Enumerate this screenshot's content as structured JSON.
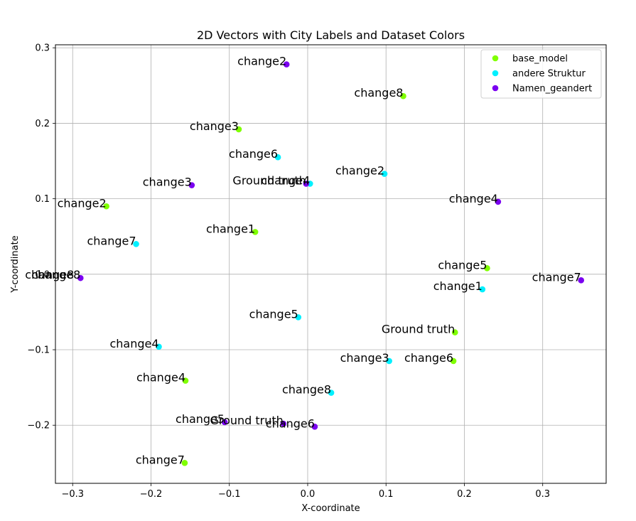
{
  "chart_data": {
    "type": "scatter",
    "title": "2D Vectors with City Labels and Dataset Colors",
    "xlabel": "X-coordinate",
    "ylabel": "Y-coordinate",
    "xlim": [
      -0.322,
      0.381
    ],
    "ylim": [
      -0.277,
      0.304
    ],
    "xticks": [
      -0.3,
      -0.2,
      -0.1,
      0.0,
      0.1,
      0.2,
      0.3
    ],
    "xtick_labels": [
      "−0.3",
      "−0.2",
      "−0.1",
      "0.0",
      "0.1",
      "0.2",
      "0.3"
    ],
    "yticks": [
      -0.2,
      -0.1,
      0.0,
      0.1,
      0.2,
      0.3
    ],
    "ytick_labels": [
      "−0.2",
      "−0.1",
      "0.0",
      "0.1",
      "0.2",
      "0.3"
    ],
    "grid": true,
    "legend_position": "top-right",
    "series": [
      {
        "name": "base_model",
        "color": "#80ff00",
        "points": [
          {
            "x": -0.088,
            "y": 0.192,
            "label": "change3"
          },
          {
            "x": 0.122,
            "y": 0.236,
            "label": "change8"
          },
          {
            "x": -0.257,
            "y": 0.09,
            "label": "change2"
          },
          {
            "x": -0.067,
            "y": 0.056,
            "label": "change1"
          },
          {
            "x": 0.229,
            "y": 0.008,
            "label": "change5"
          },
          {
            "x": 0.188,
            "y": -0.077,
            "label": "Ground truth"
          },
          {
            "x": 0.186,
            "y": -0.115,
            "label": "change6"
          },
          {
            "x": -0.156,
            "y": -0.141,
            "label": "change4"
          },
          {
            "x": -0.157,
            "y": -0.25,
            "label": "change7"
          }
        ]
      },
      {
        "name": "andere Struktur",
        "color": "#00f0ff",
        "points": [
          {
            "x": -0.038,
            "y": 0.155,
            "label": "change6"
          },
          {
            "x": 0.098,
            "y": 0.133,
            "label": "change2"
          },
          {
            "x": 0.003,
            "y": 0.12,
            "label": "change4"
          },
          {
            "x": -0.219,
            "y": 0.04,
            "label": "change7"
          },
          {
            "x": 0.223,
            "y": -0.02,
            "label": "change1"
          },
          {
            "x": -0.012,
            "y": -0.057,
            "label": "change5"
          },
          {
            "x": -0.19,
            "y": -0.096,
            "label": "change4"
          },
          {
            "x": 0.104,
            "y": -0.115,
            "label": "change3"
          },
          {
            "x": 0.03,
            "y": -0.157,
            "label": "change8"
          }
        ]
      },
      {
        "name": "Namen_geandert",
        "color": "#7a00f0",
        "points": [
          {
            "x": -0.027,
            "y": 0.278,
            "label": "change2"
          },
          {
            "x": -0.148,
            "y": 0.118,
            "label": "change3"
          },
          {
            "x": -0.002,
            "y": 0.12,
            "label": "Ground truth"
          },
          {
            "x": 0.243,
            "y": 0.096,
            "label": "change4"
          },
          {
            "x": -0.29,
            "y": -0.005,
            "label": "change8"
          },
          {
            "x": 0.349,
            "y": -0.008,
            "label": "change7"
          },
          {
            "x": -0.106,
            "y": -0.196,
            "label": "change5"
          },
          {
            "x": -0.031,
            "y": -0.198,
            "label": "Ground truth"
          },
          {
            "x": 0.009,
            "y": -0.202,
            "label": "change6"
          }
        ]
      }
    ],
    "extra_labels": [
      {
        "x": -0.29,
        "y": -0.005,
        "label": "change8"
      }
    ]
  }
}
